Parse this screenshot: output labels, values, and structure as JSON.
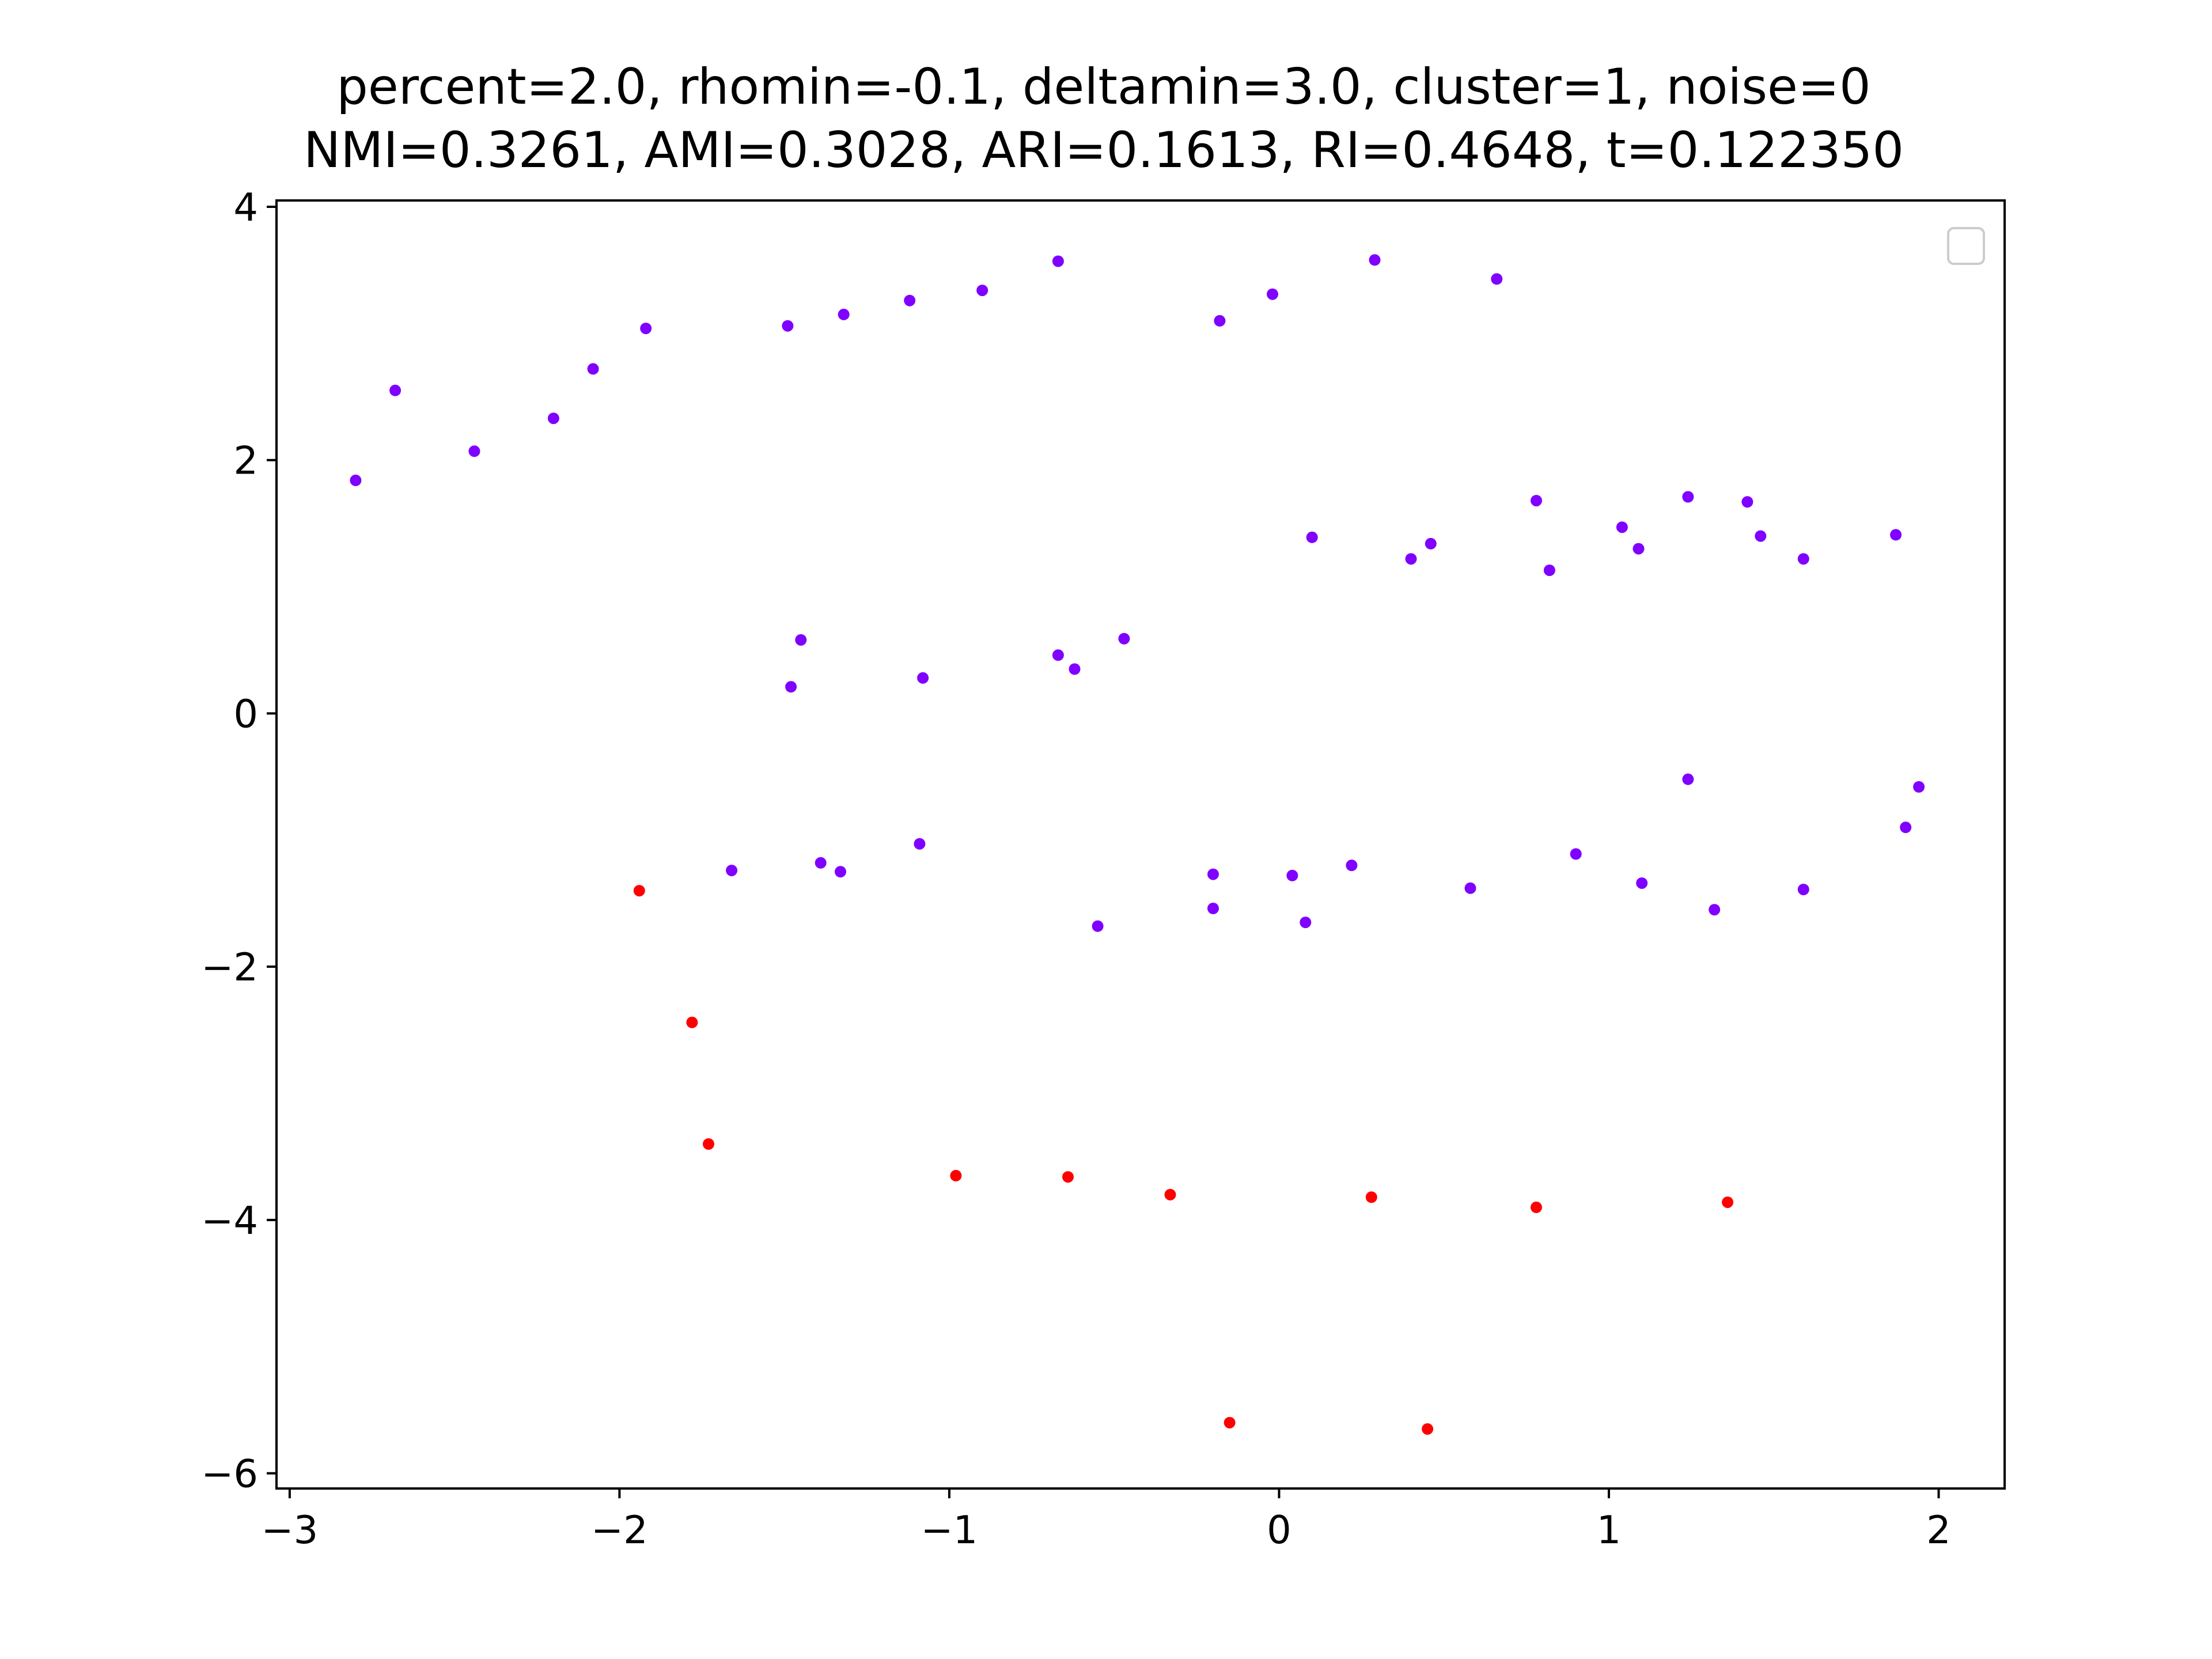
{
  "chart_data": {
    "type": "scatter",
    "title": [
      "percent=2.0, rhomin=-0.1, deltamin=3.0, cluster=1, noise=0",
      "NMI=0.3261, AMI=0.3028, ARI=0.1613, RI=0.4648, t=0.122350"
    ],
    "xlabel": "",
    "ylabel": "",
    "xlim": [
      -3.04,
      2.2
    ],
    "ylim": [
      -6.12,
      4.05
    ],
    "x_ticks": [
      -3,
      -2,
      -1,
      0,
      1,
      2
    ],
    "y_ticks": [
      -6,
      -4,
      -2,
      0,
      2,
      4
    ],
    "x_tick_labels": [
      "−3",
      "−2",
      "−1",
      "0",
      "1",
      "2"
    ],
    "y_tick_labels": [
      "−6",
      "−4",
      "−2",
      "0",
      "2",
      "4"
    ],
    "grid": false,
    "legend": {
      "position": "top-right",
      "entries": []
    },
    "series": [
      {
        "color": "#8000ff",
        "points": [
          [
            -2.8,
            1.84
          ],
          [
            -2.68,
            2.55
          ],
          [
            -2.44,
            2.07
          ],
          [
            -2.2,
            2.33
          ],
          [
            -2.08,
            2.72
          ],
          [
            -1.92,
            3.04
          ],
          [
            -1.49,
            3.06
          ],
          [
            -1.32,
            3.15
          ],
          [
            -1.12,
            3.26
          ],
          [
            -0.9,
            3.34
          ],
          [
            -0.67,
            3.57
          ],
          [
            -0.18,
            3.1
          ],
          [
            -0.02,
            3.31
          ],
          [
            0.29,
            3.58
          ],
          [
            0.66,
            3.43
          ],
          [
            0.1,
            1.39
          ],
          [
            0.4,
            1.22
          ],
          [
            0.46,
            1.34
          ],
          [
            0.78,
            1.68
          ],
          [
            0.82,
            1.13
          ],
          [
            1.04,
            1.47
          ],
          [
            1.09,
            1.3
          ],
          [
            1.24,
            1.71
          ],
          [
            1.42,
            1.67
          ],
          [
            1.46,
            1.4
          ],
          [
            1.59,
            1.22
          ],
          [
            1.87,
            1.41
          ],
          [
            -1.45,
            0.58
          ],
          [
            -1.48,
            0.21
          ],
          [
            -1.08,
            0.28
          ],
          [
            -0.67,
            0.46
          ],
          [
            -0.62,
            0.35
          ],
          [
            -0.47,
            0.59
          ],
          [
            -1.66,
            -1.24
          ],
          [
            -1.39,
            -1.18
          ],
          [
            -1.33,
            -1.25
          ],
          [
            -1.09,
            -1.03
          ],
          [
            -0.55,
            -1.68
          ],
          [
            -0.2,
            -1.27
          ],
          [
            -0.2,
            -1.54
          ],
          [
            0.04,
            -1.28
          ],
          [
            0.08,
            -1.65
          ],
          [
            0.22,
            -1.2
          ],
          [
            0.58,
            -1.38
          ],
          [
            0.9,
            -1.11
          ],
          [
            1.1,
            -1.34
          ],
          [
            1.24,
            -0.52
          ],
          [
            1.32,
            -1.55
          ],
          [
            1.59,
            -1.39
          ],
          [
            1.9,
            -0.9
          ],
          [
            1.94,
            -0.58
          ]
        ]
      },
      {
        "color": "#ff0000",
        "points": [
          [
            -1.94,
            -1.4
          ],
          [
            -1.78,
            -2.44
          ],
          [
            -1.73,
            -3.4
          ],
          [
            -0.98,
            -3.65
          ],
          [
            -0.64,
            -3.66
          ],
          [
            -0.33,
            -3.8
          ],
          [
            0.28,
            -3.82
          ],
          [
            0.78,
            -3.9
          ],
          [
            1.36,
            -3.86
          ],
          [
            -0.15,
            -5.6
          ],
          [
            0.45,
            -5.65
          ]
        ]
      }
    ]
  }
}
